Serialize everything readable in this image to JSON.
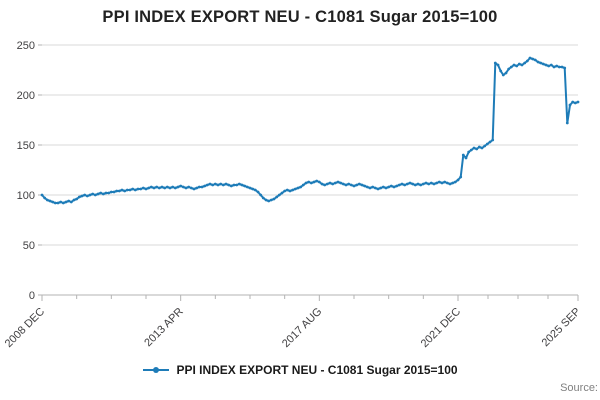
{
  "footer": {
    "source": "Source:"
  },
  "chart_data": {
    "type": "line",
    "title": "PPI INDEX EXPORT NEU - C1081 Sugar 2015=100",
    "xlabel": "",
    "ylabel": "",
    "ylim": [
      0,
      250
    ],
    "y_ticks": [
      0,
      50,
      100,
      150,
      200,
      250
    ],
    "grid": "horizontal",
    "legend_position": "bottom",
    "x_start": "2008 DEC",
    "x_end": "2025 SEP",
    "x_tick_labels": [
      "2008 DEC",
      "2013 APR",
      "2017 AUG",
      "2021 DEC",
      "2025 SEP"
    ],
    "x_tick_indices": [
      0,
      52,
      104,
      156,
      201
    ],
    "series": [
      {
        "name": "PPI INDEX EXPORT NEU - C1081 Sugar 2015=100",
        "color": "#1e7cb8",
        "values": [
          100,
          97,
          95,
          94,
          93,
          92,
          92,
          93,
          92,
          93,
          94,
          93,
          95,
          96,
          98,
          99,
          100,
          99,
          100,
          101,
          100,
          101,
          102,
          101,
          102,
          102,
          103,
          103,
          104,
          104,
          105,
          104,
          105,
          105,
          106,
          105,
          106,
          106,
          107,
          106,
          107,
          108,
          107,
          108,
          107,
          108,
          107,
          108,
          107,
          108,
          107,
          108,
          109,
          108,
          107,
          108,
          107,
          106,
          107,
          108,
          108,
          109,
          110,
          111,
          110,
          111,
          110,
          111,
          110,
          111,
          110,
          109,
          110,
          110,
          111,
          110,
          109,
          108,
          107,
          106,
          105,
          103,
          100,
          97,
          95,
          94,
          95,
          96,
          98,
          100,
          102,
          104,
          105,
          104,
          105,
          106,
          107,
          108,
          110,
          112,
          113,
          112,
          113,
          114,
          113,
          111,
          110,
          111,
          112,
          111,
          112,
          113,
          112,
          111,
          110,
          111,
          110,
          109,
          110,
          111,
          110,
          109,
          108,
          107,
          108,
          107,
          106,
          107,
          108,
          107,
          108,
          109,
          108,
          109,
          110,
          111,
          110,
          111,
          112,
          111,
          110,
          111,
          110,
          111,
          112,
          111,
          112,
          111,
          112,
          113,
          112,
          113,
          112,
          111,
          112,
          113,
          115,
          118,
          140,
          137,
          143,
          145,
          147,
          146,
          148,
          147,
          149,
          151,
          153,
          155,
          232,
          230,
          224,
          220,
          222,
          226,
          228,
          230,
          229,
          231,
          230,
          232,
          234,
          237,
          236,
          235,
          233,
          232,
          231,
          230,
          229,
          230,
          228,
          229,
          228,
          228,
          227,
          172,
          190,
          193,
          192,
          193
        ]
      }
    ]
  }
}
